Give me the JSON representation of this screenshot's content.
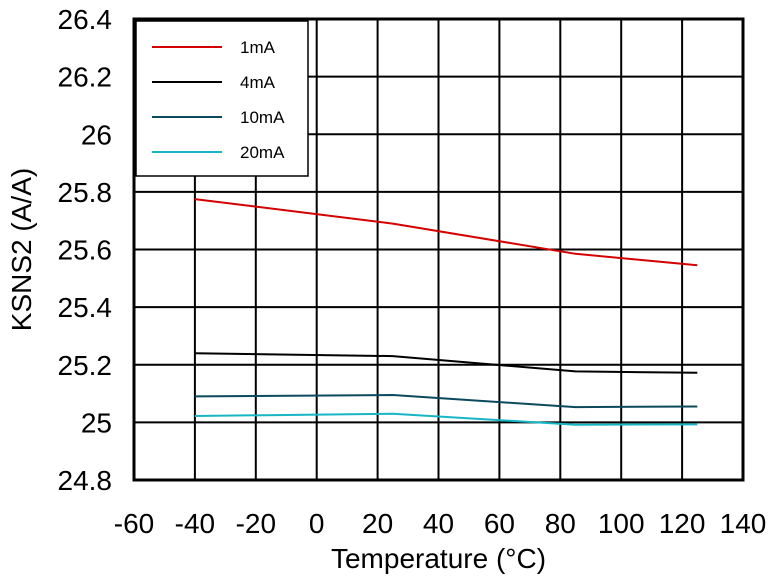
{
  "chart_data": {
    "type": "line",
    "xlabel": "Temperature (°C)",
    "ylabel": "KSNS2 (A/A)",
    "xlim": [
      -60,
      140
    ],
    "ylim": [
      24.8,
      26.4
    ],
    "xticks": [
      -60,
      -40,
      -20,
      0,
      20,
      40,
      60,
      80,
      100,
      120,
      140
    ],
    "yticks": [
      24.8,
      25,
      25.2,
      25.4,
      25.6,
      25.8,
      26,
      26.2,
      26.4
    ],
    "xtick_labels": [
      "-60",
      "-40",
      "-20",
      "0",
      "20",
      "40",
      "60",
      "80",
      "100",
      "120",
      "140"
    ],
    "ytick_labels": [
      "24.8",
      "25",
      "25.2",
      "25.4",
      "25.6",
      "25.8",
      "26",
      "26.2",
      "26.4"
    ],
    "grid": true,
    "legend_position": "top-left",
    "series": [
      {
        "name": "1mA",
        "color": "#d40000",
        "x": [
          -40,
          25,
          85,
          125
        ],
        "y": [
          25.775,
          25.69,
          25.585,
          25.545
        ]
      },
      {
        "name": "4mA",
        "color": "#000000",
        "x": [
          -40,
          25,
          85,
          125
        ],
        "y": [
          25.24,
          25.23,
          25.177,
          25.172
        ]
      },
      {
        "name": "10mA",
        "color": "#0b4a5c",
        "x": [
          -40,
          25,
          85,
          125
        ],
        "y": [
          25.09,
          25.095,
          25.053,
          25.055
        ]
      },
      {
        "name": "20mA",
        "color": "#18b6c4",
        "x": [
          -40,
          25,
          85,
          125
        ],
        "y": [
          25.022,
          25.03,
          24.992,
          24.993
        ]
      }
    ]
  }
}
